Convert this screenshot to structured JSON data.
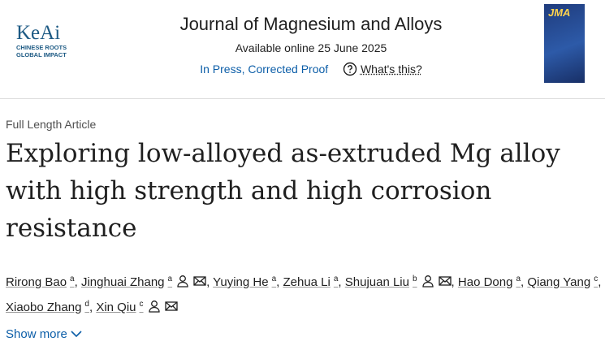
{
  "header": {
    "logo": {
      "name": "KeAi",
      "tagline": [
        "CHINESE ROOTS",
        "GLOBAL IMPACT"
      ]
    },
    "journal": "Journal of Magnesium and Alloys",
    "available": "Available online 25 June 2025",
    "status": "In Press, Corrected Proof",
    "help": "What's this?",
    "cover": "JMA"
  },
  "article": {
    "type": "Full Length Article",
    "title": "Exploring low-alloyed as-extruded Mg alloy with high strength and high corrosion resistance",
    "authors": [
      {
        "name": "Rirong Bao",
        "sup": "a",
        "contact": false,
        "separator": ","
      },
      {
        "name": "Jinghuai Zhang",
        "sup": "a",
        "contact": true,
        "separator": ","
      },
      {
        "name": "Yuying He",
        "sup": "a",
        "contact": false,
        "separator": ","
      },
      {
        "name": "Zehua Li",
        "sup": "a",
        "contact": false,
        "separator": ","
      },
      {
        "name": "Shujuan Liu",
        "sup": "b",
        "contact": true,
        "separator": ","
      },
      {
        "name": "Hao Dong",
        "sup": "a",
        "contact": false,
        "separator": ","
      },
      {
        "name": "Qiang Yang",
        "sup": "c",
        "contact": false,
        "separator": ","
      },
      {
        "name": "Xiaobo Zhang",
        "sup": "d",
        "contact": false,
        "separator": ","
      },
      {
        "name": "Xin Qiu",
        "sup": "c",
        "contact": true
      }
    ],
    "show_more": "Show more"
  }
}
